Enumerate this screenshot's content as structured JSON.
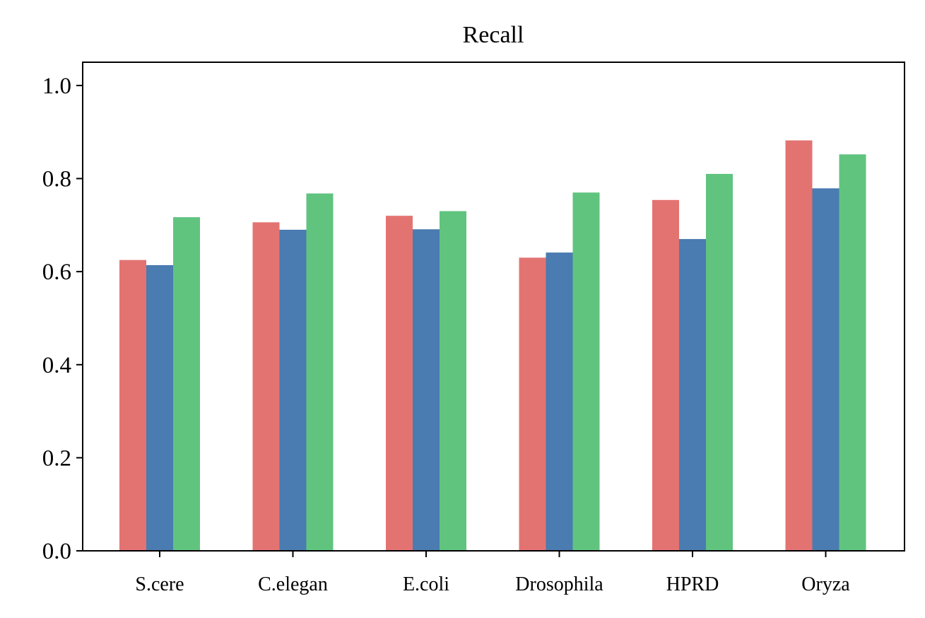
{
  "chart_data": {
    "type": "bar",
    "title": "Recall",
    "xlabel": "",
    "ylabel": "",
    "categories": [
      "S.cere",
      "C.elegan",
      "E.coli",
      "Drosophila",
      "HPRD",
      "Oryza"
    ],
    "series": [
      {
        "values": [
          0.625,
          0.706,
          0.72,
          0.63,
          0.754,
          0.882
        ],
        "color": "#e37371"
      },
      {
        "values": [
          0.614,
          0.69,
          0.691,
          0.641,
          0.67,
          0.779
        ],
        "color": "#4a7bb1"
      },
      {
        "values": [
          0.717,
          0.768,
          0.73,
          0.77,
          0.81,
          0.852
        ],
        "color": "#60c47f"
      }
    ],
    "ylim": [
      0,
      1.05
    ],
    "yticks": [
      "0.0",
      "0.2",
      "0.4",
      "0.6",
      "0.8",
      "1.0"
    ],
    "grid": false,
    "legend": "none"
  }
}
